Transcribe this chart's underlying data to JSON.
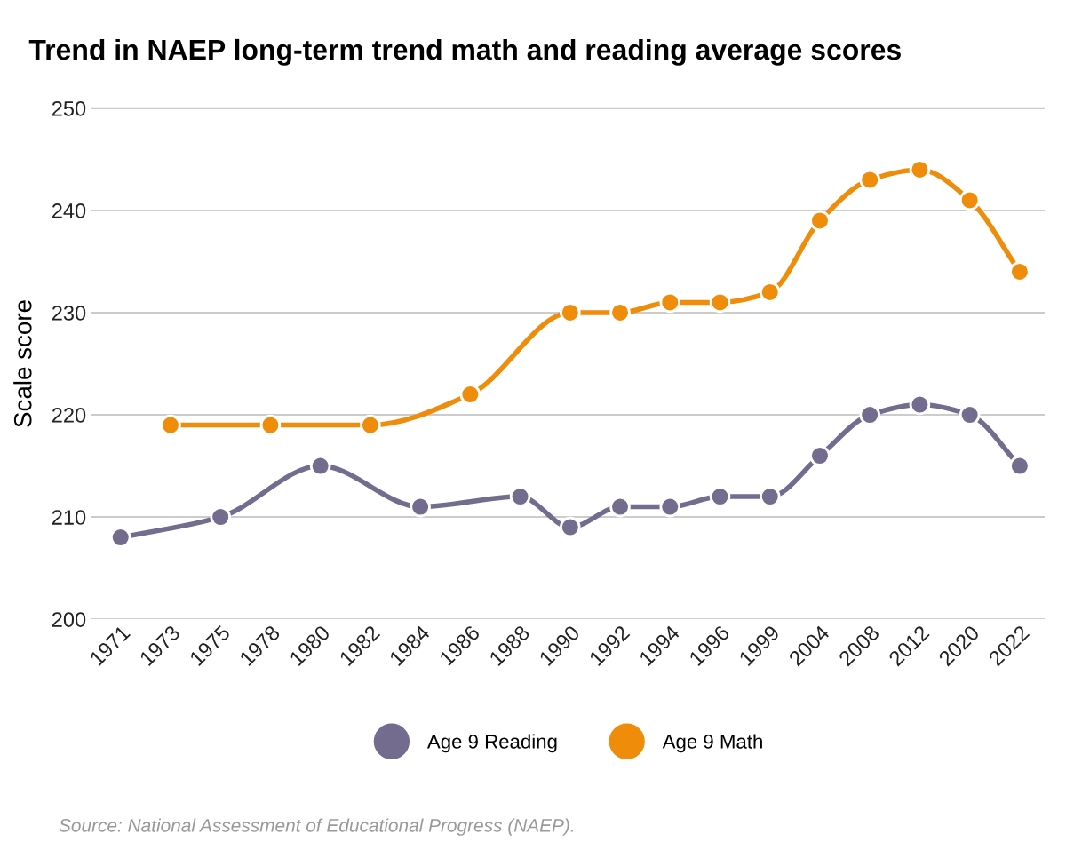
{
  "chart_data": {
    "type": "line",
    "title": "Trend in NAEP long-term trend math and reading average scores",
    "ylabel": "Scale score",
    "categories": [
      "1971",
      "1973",
      "1975",
      "1978",
      "1980",
      "1982",
      "1984",
      "1986",
      "1988",
      "1990",
      "1992",
      "1994",
      "1996",
      "1999",
      "2004",
      "2008",
      "2012",
      "2020",
      "2022"
    ],
    "series": [
      {
        "name": "Age 9 Reading",
        "color": "#736c8e",
        "values": [
          208,
          null,
          210,
          null,
          215,
          null,
          211,
          null,
          212,
          209,
          211,
          211,
          212,
          212,
          216,
          220,
          221,
          220,
          215
        ]
      },
      {
        "name": "Age 9 Math",
        "color": "#ef8c0a",
        "values": [
          null,
          219,
          null,
          219,
          null,
          219,
          null,
          222,
          null,
          230,
          230,
          231,
          231,
          232,
          239,
          243,
          244,
          241,
          234
        ]
      }
    ],
    "ylim": [
      200,
      250
    ],
    "yticks": [
      200,
      210,
      220,
      230,
      240,
      250
    ],
    "grid": "y",
    "legend": "bottom",
    "marker": "circle",
    "line_style": "solid",
    "annotations": [
      "Source: National Assessment of Educational Progress (NAEP)."
    ]
  }
}
